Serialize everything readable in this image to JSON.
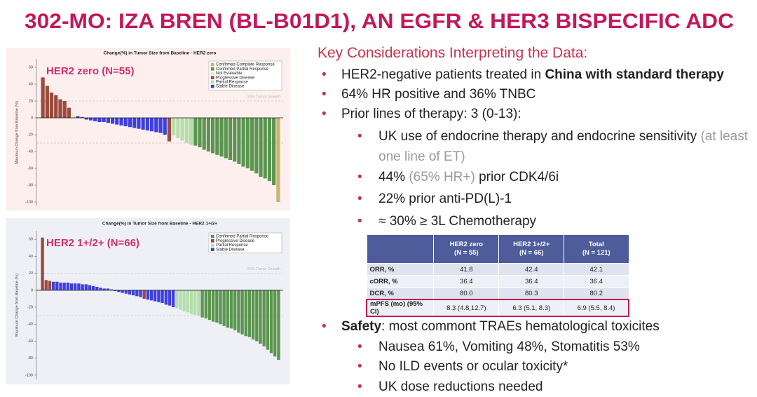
{
  "title": "302-MO: IZA BREN (BL-B01D1), AN EGFR & HER3 BISPECIFIC ADC",
  "chart_data": [
    {
      "type": "waterfall",
      "title": "Change(%) in Tumor Size from Baseline - HER2 zero",
      "label": "HER2 zero (N=55)",
      "ylabel": "Maximum Change from Baseline (%)",
      "annotation": "20% Tumor Growth",
      "ylim": [
        -105,
        70
      ],
      "yticks": [
        60,
        40,
        20,
        0,
        -20,
        -40,
        -60,
        -80,
        -100
      ],
      "hlines": [
        20,
        -30
      ],
      "series": [
        {
          "name": "Confirmed Complete Response",
          "color": "#c9b56e",
          "values": [
            null,
            null,
            null,
            null,
            null,
            null,
            null,
            null,
            null,
            null,
            null,
            null,
            null,
            null,
            null,
            null,
            null,
            null,
            null,
            null,
            null,
            null,
            null,
            null,
            null,
            null,
            null,
            null,
            null,
            null,
            null,
            null,
            null,
            null,
            null,
            null,
            null,
            null,
            null,
            null,
            null,
            null,
            null,
            null,
            null,
            null,
            null,
            null,
            null,
            null,
            null,
            null,
            null,
            null,
            -100
          ]
        },
        {
          "name": "Confirmed Partial Response",
          "color": "#5b9550",
          "values": [
            null,
            null,
            null,
            null,
            null,
            null,
            null,
            null,
            null,
            null,
            null,
            null,
            null,
            null,
            null,
            null,
            null,
            null,
            null,
            null,
            null,
            null,
            null,
            null,
            null,
            null,
            null,
            null,
            null,
            null,
            null,
            null,
            null,
            null,
            null,
            -33,
            -35,
            -38,
            -40,
            -42,
            -44,
            -46,
            -48,
            -50,
            -52,
            -55,
            -58,
            -60,
            -63,
            -66,
            -70,
            -72,
            -75,
            -80,
            null
          ]
        },
        {
          "name": "Not Evaluable",
          "color": "#ecebb0",
          "values": [
            null,
            null,
            null,
            null,
            null,
            null,
            null,
            3,
            null,
            null,
            null,
            null,
            null,
            null,
            null,
            null,
            null,
            null,
            null,
            null,
            null,
            null,
            null,
            null,
            null,
            null,
            null,
            null,
            null,
            null,
            null,
            null,
            null,
            null,
            null,
            null,
            null,
            null,
            null,
            null,
            null,
            null,
            null,
            null,
            null,
            null,
            null,
            null,
            null,
            null,
            null,
            null,
            null,
            null,
            null
          ]
        },
        {
          "name": "Progressive Disease",
          "color": "#9b4a3d",
          "values": [
            48,
            38,
            30,
            27,
            22,
            20,
            12,
            null,
            null,
            null,
            null,
            null,
            null,
            null,
            null,
            null,
            null,
            null,
            null,
            null,
            null,
            null,
            null,
            null,
            null,
            null,
            null,
            null,
            null,
            -28,
            null,
            null,
            null,
            null,
            null,
            null,
            null,
            null,
            null,
            null,
            null,
            null,
            null,
            null,
            null,
            null,
            null,
            null,
            null,
            null,
            null,
            null,
            null,
            null,
            null
          ]
        },
        {
          "name": "Partial Response",
          "color": "#b5dfaa",
          "values": [
            null,
            null,
            null,
            null,
            null,
            null,
            null,
            null,
            null,
            null,
            null,
            null,
            null,
            null,
            null,
            null,
            null,
            null,
            null,
            null,
            null,
            null,
            null,
            null,
            null,
            null,
            null,
            null,
            null,
            null,
            -21,
            -24,
            -27,
            -30,
            -32,
            null,
            null,
            null,
            null,
            null,
            null,
            null,
            null,
            null,
            null,
            null,
            null,
            null,
            null,
            null,
            null,
            null,
            null,
            null,
            null
          ]
        },
        {
          "name": "Stable Disease",
          "color": "#3f3fe0",
          "values": [
            null,
            null,
            null,
            null,
            null,
            null,
            null,
            null,
            2,
            1,
            -2,
            -3,
            -4,
            -5,
            -5,
            -6,
            -7,
            -8,
            -9,
            -10,
            -11,
            -12,
            -13,
            -14,
            -15,
            -16,
            -17,
            -18,
            -20,
            null,
            null,
            null,
            null,
            null,
            null,
            null,
            null,
            null,
            null,
            null,
            null,
            null,
            null,
            null,
            null,
            null,
            null,
            null,
            null,
            null,
            null,
            null,
            null,
            null,
            null
          ]
        }
      ]
    },
    {
      "type": "waterfall",
      "title": "Change(%) in Tumor Size from Baseline - HER2 1+/2+",
      "label": "HER2 1+/2+ (N=66)",
      "ylabel": "Maximum Change from Baseline (%)",
      "annotation": "20% Tumor Growth",
      "ylim": [
        -105,
        70
      ],
      "yticks": [
        60,
        40,
        20,
        0,
        -20,
        -40,
        -60,
        -80,
        -100
      ],
      "hlines": [
        20,
        -30
      ],
      "series": [
        {
          "name": "Confirmed Partial Response",
          "color": "#5b9550",
          "values": [
            null,
            null,
            null,
            null,
            null,
            null,
            null,
            null,
            null,
            null,
            null,
            null,
            null,
            null,
            null,
            null,
            null,
            null,
            null,
            null,
            null,
            null,
            null,
            null,
            null,
            null,
            null,
            null,
            null,
            null,
            null,
            null,
            null,
            null,
            null,
            null,
            null,
            null,
            null,
            null,
            null,
            null,
            null,
            null,
            -32,
            -33,
            -35,
            -37,
            -38,
            -40,
            -42,
            -44,
            -45,
            -47,
            -50,
            -52,
            -54,
            -55,
            -58,
            -60,
            -63,
            -66,
            -70,
            -74,
            -78,
            -82
          ]
        },
        {
          "name": "Progressive Disease",
          "color": "#9b4a3d",
          "values": [
            62,
            12,
            11,
            null,
            null,
            null,
            null,
            null,
            null,
            null,
            null,
            null,
            null,
            null,
            null,
            null,
            null,
            null,
            null,
            null,
            null,
            null,
            null,
            null,
            null,
            null,
            null,
            null,
            -10,
            null,
            null,
            null,
            null,
            null,
            null,
            null,
            null,
            null,
            null,
            null,
            null,
            null,
            null,
            null,
            null,
            null,
            null,
            null,
            null,
            null,
            null,
            null,
            null,
            null,
            null,
            null,
            null,
            null,
            null,
            null,
            null,
            null,
            null,
            null,
            null,
            null
          ]
        },
        {
          "name": "Partial Response",
          "color": "#b5dfaa",
          "values": [
            null,
            null,
            null,
            null,
            null,
            null,
            null,
            null,
            null,
            null,
            null,
            null,
            null,
            null,
            null,
            null,
            null,
            null,
            null,
            null,
            null,
            null,
            null,
            null,
            null,
            null,
            null,
            null,
            null,
            null,
            null,
            null,
            null,
            null,
            null,
            null,
            null,
            -21,
            -23,
            -25,
            -26,
            -28,
            -29,
            -30,
            null,
            null,
            null,
            null,
            null,
            null,
            null,
            null,
            null,
            null,
            null,
            null,
            null,
            null,
            null,
            null,
            null,
            null,
            null,
            null,
            null,
            null
          ]
        },
        {
          "name": "Stable Disease",
          "color": "#3f3fe0",
          "values": [
            null,
            null,
            null,
            10,
            10,
            9,
            9,
            9,
            8,
            8,
            8,
            7,
            7,
            6,
            5,
            4,
            3,
            2,
            2,
            1,
            -1,
            -2,
            -3,
            -4,
            -5,
            -6,
            -7,
            -8,
            null,
            -11,
            -12,
            -13,
            -14,
            -15,
            -17,
            -18,
            -20,
            null,
            null,
            null,
            null,
            null,
            null,
            null,
            null,
            null,
            null,
            null,
            null,
            null,
            null,
            null,
            null,
            null,
            null,
            null,
            null,
            null,
            null,
            null,
            null,
            null,
            null,
            null,
            null,
            null
          ]
        }
      ]
    }
  ],
  "considerations": {
    "heading": "Key Considerations Interpreting the Data:",
    "items": [
      {
        "level": 1,
        "runs": [
          {
            "text": "HER2-negative patients treated in "
          },
          {
            "text": "China with standard therapy",
            "bold": true
          }
        ]
      },
      {
        "level": 1,
        "runs": [
          {
            "text": "64% HR positive and 36% TNBC"
          }
        ]
      },
      {
        "level": 1,
        "runs": [
          {
            "text": "Prior lines of therapy: 3 (0-13):"
          }
        ]
      },
      {
        "level": 2,
        "runs": [
          {
            "text": "UK use of endocrine therapy and endocrine sensitivity "
          },
          {
            "text": "(at least one line of ET)",
            "color": "#9a9a9a"
          }
        ]
      },
      {
        "level": 2,
        "runs": [
          {
            "text": "44% "
          },
          {
            "text": "(65% HR+)",
            "color": "#9a9a9a"
          },
          {
            "text": " prior CDK4/6i"
          }
        ]
      },
      {
        "level": 2,
        "runs": [
          {
            "text": "22% prior anti-PD(L)-1"
          }
        ]
      },
      {
        "level": 2,
        "runs": [
          {
            "text": "≈ 30% ≥  3L Chemotherapy"
          }
        ]
      },
      {
        "level": 1,
        "runs": [
          {
            "text": "Safety",
            "bold": true
          },
          {
            "text": ": most commont TRAEs hematological toxicites"
          }
        ]
      },
      {
        "level": 2,
        "runs": [
          {
            "text": "Nausea 61%, Vomiting 48%, Stomatitis 53%"
          }
        ]
      },
      {
        "level": 2,
        "runs": [
          {
            "text": "No ILD events or ocular toxicity*"
          }
        ]
      },
      {
        "level": 2,
        "runs": [
          {
            "text": "UK dose reductions needed"
          }
        ]
      }
    ]
  },
  "table": {
    "columns": [
      [
        "HER2 zero",
        "(N = 55)"
      ],
      [
        "HER2 1+/2+",
        "(N = 66)"
      ],
      [
        "Total",
        "(N = 121)"
      ]
    ],
    "rows": [
      {
        "cells": [
          "ORR, %",
          "41.8",
          "42.4",
          "42.1"
        ]
      },
      {
        "cells": [
          "cORR, %",
          "36.4",
          "36.4",
          "36.4"
        ]
      },
      {
        "cells": [
          "DCR, %",
          "80.0",
          "80.3",
          "80.2"
        ]
      },
      {
        "cells": [
          "mPFS (mo) (95% CI)",
          "8.3 (4.8,12.7)",
          "6.3 (5.1, 8.3)",
          "6.9 (5.5, 8.4)"
        ],
        "highlight": true
      }
    ]
  }
}
